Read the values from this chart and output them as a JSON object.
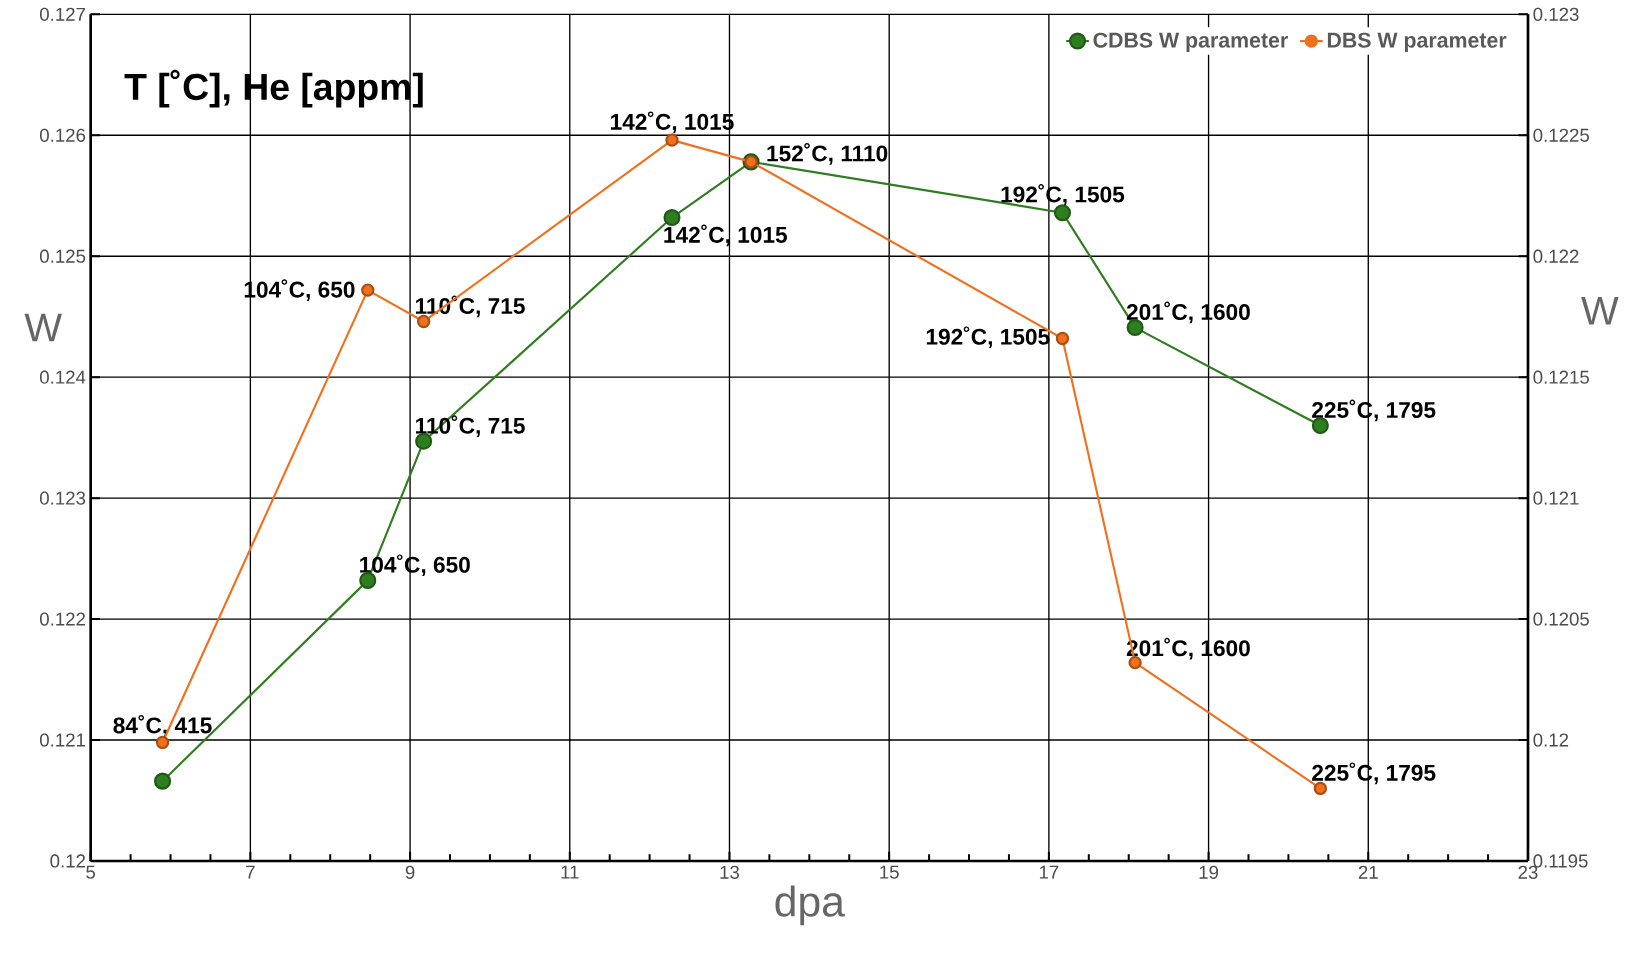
{
  "chart_data": {
    "type": "line",
    "title": "T [˚C], He [appm]",
    "xlabel": "dpa",
    "ylabel": "W",
    "y2label": "W",
    "x": [
      5.9,
      8.47,
      9.17,
      12.28,
      13.27,
      17.17,
      18.08,
      20.4
    ],
    "series": [
      {
        "name": "CDBS W parameter",
        "color": "#2e7d1e",
        "values": [
          0.12066,
          0.12232,
          0.12347,
          0.12532,
          0.12578,
          0.12536,
          0.12441,
          0.1236
        ]
      },
      {
        "name": "DBS W parameter",
        "color": "#f0701e",
        "axis": "y2",
        "values": [
          0.11999,
          0.12186,
          0.12173,
          0.12248,
          0.12239,
          0.12166,
          0.12032,
          0.1198
        ]
      }
    ],
    "annotations": [
      {
        "text": "104˚C, 650",
        "x": 8.47,
        "y": 0.12232
      },
      {
        "text": "110˚C, 715",
        "x": 9.17,
        "y": 0.12347
      },
      {
        "text": "142˚C, 1015",
        "x": 12.28,
        "y": 0.12532
      },
      {
        "text": "152˚C, 1110",
        "x": 13.27,
        "y": 0.12578
      },
      {
        "text": "192˚C, 1505",
        "x": 17.17,
        "y": 0.12536
      },
      {
        "text": "201˚C, 1600",
        "x": 18.08,
        "y": 0.12441
      },
      {
        "text": "225˚C, 1795",
        "x": 20.4,
        "y": 0.1236
      },
      {
        "text": "84˚C, 415",
        "x": 5.9,
        "y": 0.12097
      },
      {
        "text": "104˚C, 650",
        "x": 8.47,
        "y": 0.12472
      },
      {
        "text": "110˚C, 715",
        "x": 9.17,
        "y": 0.12446
      },
      {
        "text": "142˚C, 1015",
        "x": 12.28,
        "y": 0.12596
      },
      {
        "text": "192˚C, 1505",
        "x": 17.17,
        "y": 0.12433
      },
      {
        "text": "201˚C, 1600",
        "x": 18.08,
        "y": 0.12163
      },
      {
        "text": "225˚C, 1795",
        "x": 20.4,
        "y": 0.1206
      }
    ],
    "xlim": [
      5,
      23
    ],
    "xticks": [
      5,
      7,
      9,
      11,
      13,
      15,
      17,
      19,
      21,
      23
    ],
    "ylim": [
      0.12,
      0.127
    ],
    "yticks": [
      0.12,
      0.121,
      0.122,
      0.123,
      0.124,
      0.125,
      0.126,
      0.127
    ],
    "y2lim": [
      0.1195,
      0.123
    ],
    "y2ticks": [
      0.1195,
      0.12,
      0.1205,
      0.121,
      0.1215,
      0.122,
      0.1225,
      0.123
    ],
    "grid": true,
    "legend": "top right",
    "marker": "circle",
    "line_style": "solid"
  }
}
